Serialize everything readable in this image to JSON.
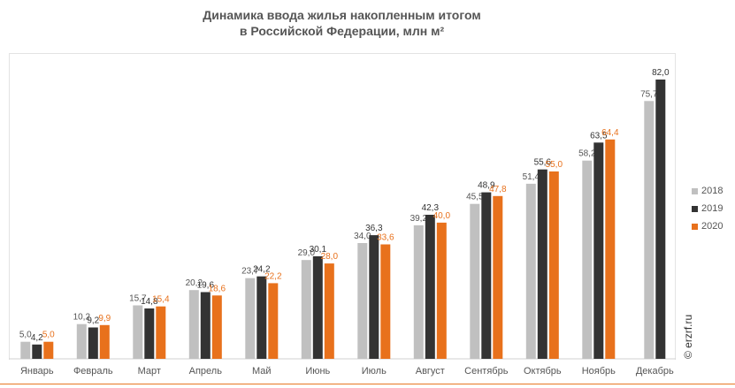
{
  "chart_data": {
    "type": "bar",
    "title_lines": [
      "Динамика ввода жилья накопленным итогом",
      "в Российской  Федерации, млн м²"
    ],
    "categories": [
      "Январь",
      "Февраль",
      "Март",
      "Апрель",
      "Май",
      "Июнь",
      "Июль",
      "Август",
      "Сентябрь",
      "Октябрь",
      "Ноябрь",
      "Декабрь"
    ],
    "series": [
      {
        "name": "2018",
        "color": "#c0c0c0",
        "label_color": "#555555",
        "values": [
          5.0,
          10.2,
          15.7,
          20.2,
          23.7,
          29.0,
          34.0,
          39.2,
          45.5,
          51.4,
          58.2,
          75.7
        ],
        "labels": [
          "5,0",
          "10,2",
          "15,7",
          "20,2",
          "23,7",
          "29,0",
          "34,0",
          "39,2",
          "45,5",
          "51,4",
          "58,2",
          "75,7"
        ]
      },
      {
        "name": "2019",
        "color": "#333333",
        "label_color": "#333333",
        "values": [
          4.2,
          9.2,
          14.8,
          19.6,
          24.2,
          30.1,
          36.3,
          42.3,
          48.9,
          55.6,
          63.5,
          82.0
        ],
        "labels": [
          "4,2",
          "9,2",
          "14,8",
          "19,6",
          "24,2",
          "30,1",
          "36,3",
          "42,3",
          "48,9",
          "55,6",
          "63,5",
          "82,0"
        ]
      },
      {
        "name": "2020",
        "color": "#e8711c",
        "label_color": "#e8711c",
        "values": [
          5.0,
          9.9,
          15.4,
          18.6,
          22.2,
          28.0,
          33.6,
          40.0,
          47.8,
          55.0,
          64.4,
          null
        ],
        "labels": [
          "5,0",
          "9,9",
          "15,4",
          "18,6",
          "22,2",
          "28,0",
          "33,6",
          "40,0",
          "47,8",
          "55,0",
          "64,4",
          ""
        ]
      }
    ],
    "ylim": [
      0,
      82
    ],
    "grid": false,
    "legend_position": "right"
  },
  "watermark": "© erzrf.ru"
}
